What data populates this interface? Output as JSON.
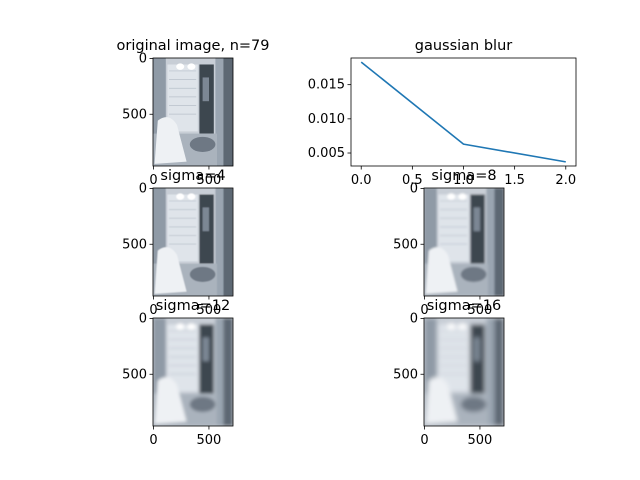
{
  "chart_data": [
    {
      "type": "image",
      "title": "original image, n=79",
      "x_ticks": [
        "0",
        "500"
      ],
      "y_ticks": [
        "0",
        "500"
      ],
      "blur": 0.2
    },
    {
      "type": "line",
      "title": "gaussian blur",
      "x": [
        0,
        1,
        2
      ],
      "series": [
        {
          "values": [
            0.0183,
            0.0063,
            0.0037
          ],
          "color": "#1f77b4"
        }
      ],
      "xlim": [
        -0.1,
        2.1
      ],
      "ylim": [
        0.0031,
        0.0189
      ],
      "x_ticks": [
        "0.0",
        "0.5",
        "1.0",
        "1.5",
        "2.0"
      ],
      "x_tick_values": [
        0,
        0.5,
        1,
        1.5,
        2
      ],
      "y_ticks": [
        "0.005",
        "0.010",
        "0.015"
      ],
      "y_tick_values": [
        0.005,
        0.01,
        0.015
      ]
    },
    {
      "type": "image",
      "title": "sigma=4",
      "x_ticks": [
        "0",
        "500"
      ],
      "y_ticks": [
        "0",
        "500"
      ],
      "blur": 0.6
    },
    {
      "type": "image",
      "title": "sigma=8",
      "x_ticks": [
        "0",
        "500"
      ],
      "y_ticks": [
        "0",
        "500"
      ],
      "blur": 1.1
    },
    {
      "type": "image",
      "title": "sigma=12",
      "x_ticks": [
        "0",
        "500"
      ],
      "y_ticks": [
        "0",
        "500"
      ],
      "blur": 1.7
    },
    {
      "type": "image",
      "title": "sigma=16",
      "x_ticks": [
        "0",
        "500"
      ],
      "y_ticks": [
        "0",
        "500"
      ],
      "blur": 2.3
    }
  ]
}
